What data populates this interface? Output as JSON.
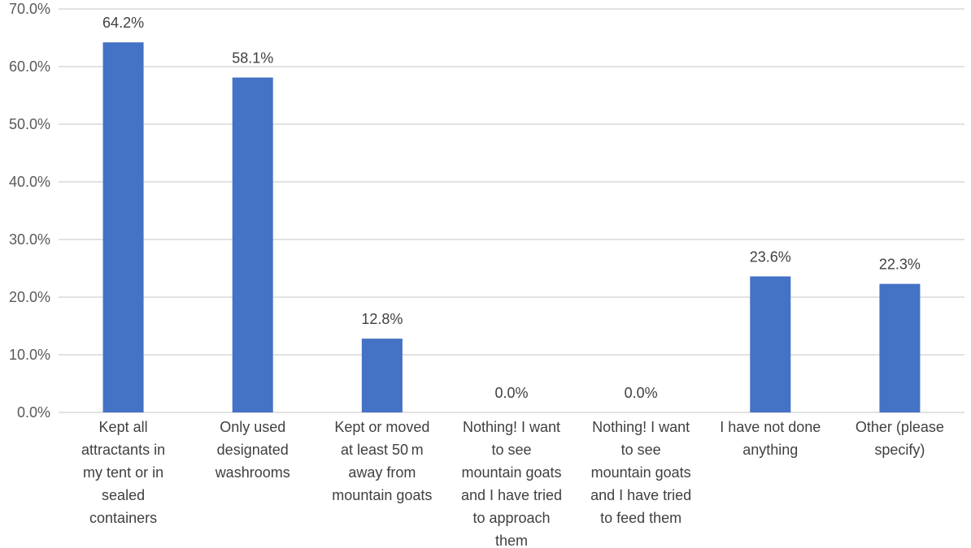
{
  "chart_data": {
    "type": "bar",
    "categories": [
      [
        "Kept all",
        "attractants in",
        "my tent or in",
        "sealed",
        "containers"
      ],
      [
        "Only used",
        "designated",
        "washrooms"
      ],
      [
        "Kept or moved",
        "at least 50 m",
        "away from",
        "mountain goats"
      ],
      [
        "Nothing! I want",
        "to see",
        "mountain goats",
        "and I have tried",
        "to approach",
        "them"
      ],
      [
        "Nothing! I want",
        "to see",
        "mountain goats",
        "and I have tried",
        "to feed them"
      ],
      [
        "I have not done",
        "anything"
      ],
      [
        "Other (please",
        "specify)"
      ]
    ],
    "values": [
      64.2,
      58.1,
      12.8,
      0.0,
      0.0,
      23.6,
      22.3
    ],
    "data_labels": [
      "64.2%",
      "58.1%",
      "12.8%",
      "0.0%",
      "0.0%",
      "23.6%",
      "22.3%"
    ],
    "y_ticks": [
      "0.0%",
      "10.0%",
      "20.0%",
      "30.0%",
      "40.0%",
      "50.0%",
      "60.0%",
      "70.0%"
    ],
    "ylim": [
      0,
      70
    ],
    "grid": true,
    "colors": {
      "bar": "#4472C4",
      "grid": "#D9D9D9"
    }
  }
}
